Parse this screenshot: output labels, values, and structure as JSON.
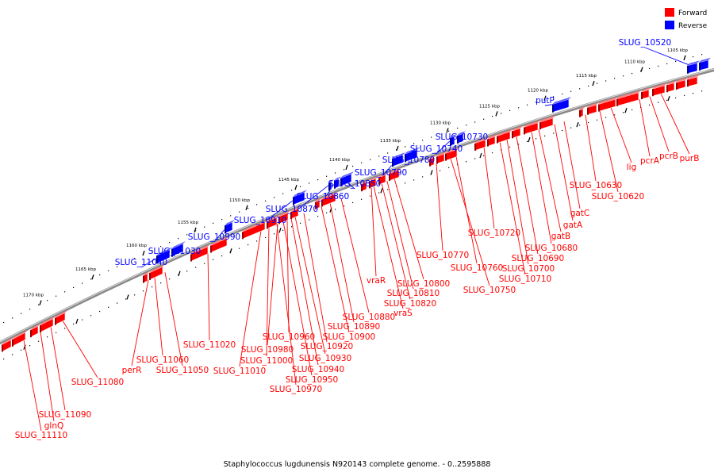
{
  "caption": "Staphylococcus lugdunensis N920143 complete genome. - 0..2595888",
  "legend": [
    {
      "label": "Forward",
      "color": "#ff0000"
    },
    {
      "label": "Reverse",
      "color": "#0000ff"
    }
  ],
  "colors": {
    "forward": "#ff0000",
    "reverse": "#0000ff",
    "backbone": "#888888"
  },
  "ticks": [
    "1105 kbp",
    "1110 kbp",
    "1115 kbp",
    "1120 kbp",
    "1125 kbp",
    "1130 kbp",
    "1135 kbp",
    "1140 kbp",
    "1145 kbp",
    "1150 kbp",
    "1155 kbp",
    "1160 kbp",
    "1165 kbp",
    "1170 kbp"
  ],
  "reverse_labels": [
    "SLUG_10520",
    "putP",
    "SLUG_10730",
    "SLUG_10740",
    "SLUG_10780",
    "SLUG_10790",
    "SLUG_10850",
    "SLUG_10860",
    "SLUG_10870",
    "SLUG_10910",
    "SLUG_10990",
    "SLUG_11030",
    "SLUG_11040"
  ],
  "forward_labels": [
    "purB",
    "pcrB",
    "pcrA",
    "lig",
    "SLUG_10620",
    "SLUG_10630",
    "gatC",
    "gatA",
    "gatB",
    "SLUG_10680",
    "SLUG_10690",
    "SLUG_10700",
    "SLUG_10710",
    "SLUG_10720",
    "SLUG_10750",
    "SLUG_10760",
    "SLUG_10770",
    "SLUG_10800",
    "SLUG_10810",
    "SLUG_10820",
    "vraS",
    "vraR",
    "SLUG_10880",
    "SLUG_10890",
    "SLUG_10900",
    "SLUG_10920",
    "SLUG_10930",
    "SLUG_10940",
    "SLUG_10950",
    "SLUG_10960",
    "SLUG_10970",
    "SLUG_10980",
    "SLUG_11000",
    "SLUG_11010",
    "SLUG_11020",
    "SLUG_11050",
    "SLUG_11060",
    "perR",
    "SLUG_11080",
    "SLUG_11090",
    "glnQ",
    "SLUG_11110"
  ]
}
